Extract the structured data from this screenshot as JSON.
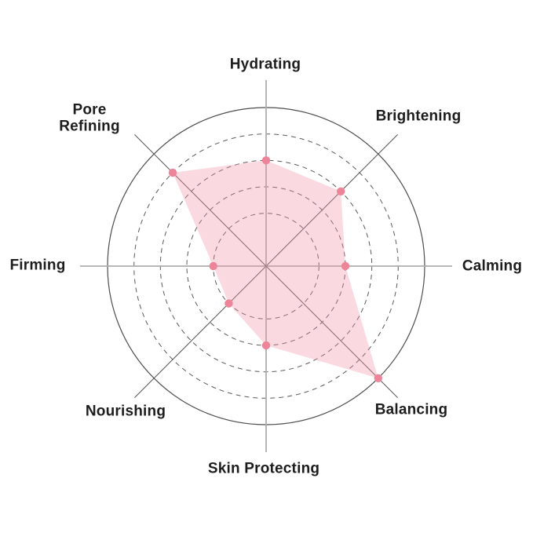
{
  "chart_data": {
    "type": "radar",
    "categories": [
      "Hydrating",
      "Brightening",
      "Calming",
      "Balancing",
      "Skin Protecting",
      "Nourishing",
      "Firming",
      "Pore Refining"
    ],
    "values": [
      4,
      4,
      3,
      6,
      3,
      2,
      2,
      5
    ],
    "scale_max": 6,
    "grid_levels": [
      2,
      3,
      4,
      5,
      6
    ],
    "title": "",
    "legend": "none",
    "grid_style": "dashed concentric circles with solid outer circle and 8 radial spokes",
    "colors": {
      "point": "#ee8498",
      "area_fill": "#f490a5",
      "area_fill_opacity": 0.34,
      "outer_circle": "#4f4f4f",
      "dashed_ring": "#5a5a5a",
      "main_axis": "#aeaeae",
      "diagonal_axis": "#565656",
      "label_text": "#1d1d1d"
    }
  }
}
